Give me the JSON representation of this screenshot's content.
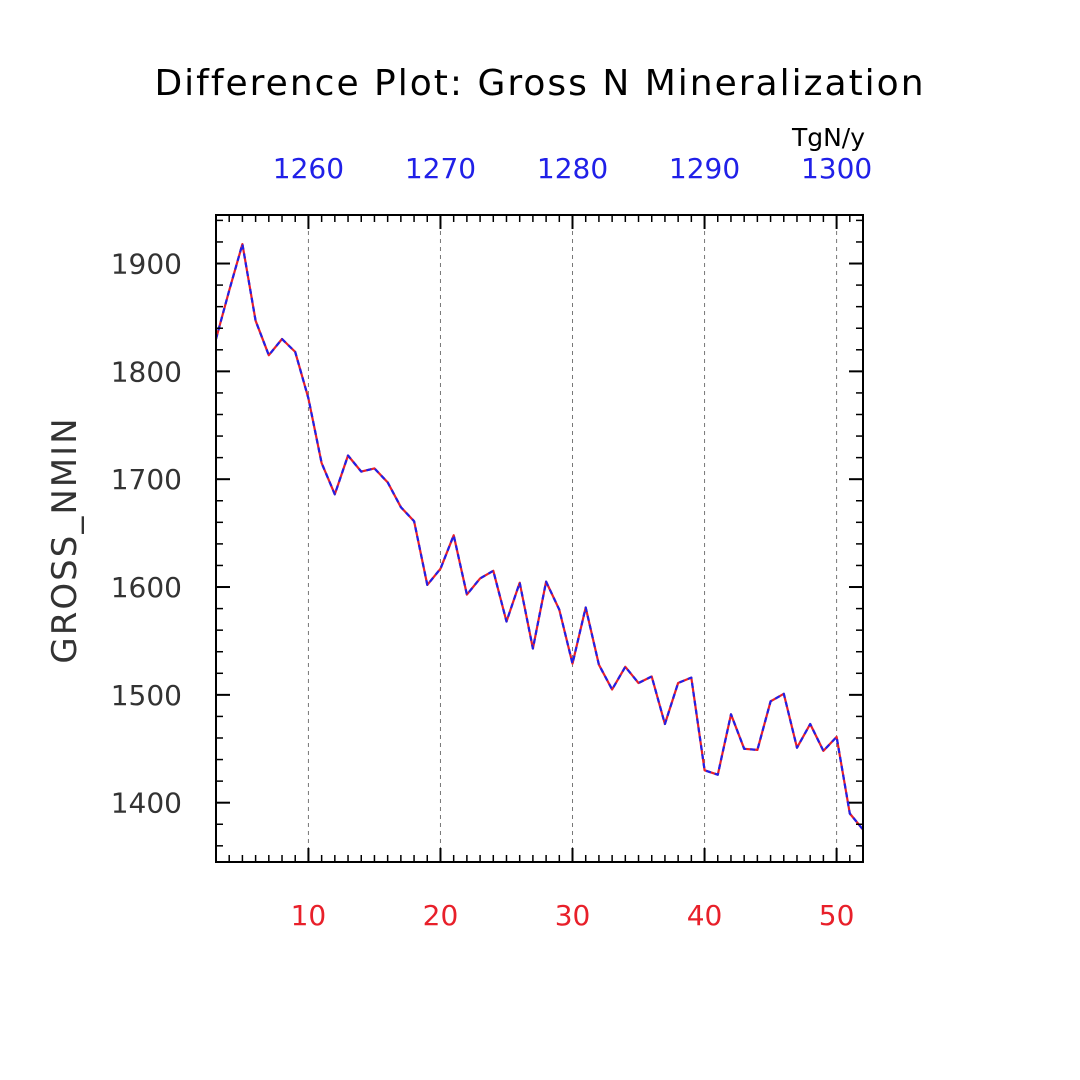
{
  "chart_data": {
    "type": "line",
    "title": "Difference Plot: Gross N Mineralization",
    "ylabel": "GROSS_NMIN",
    "units": "TgN/y",
    "xlim": [
      3,
      52
    ],
    "ylim": [
      1345,
      1945
    ],
    "x_ticks": [
      10,
      20,
      30,
      40,
      50
    ],
    "x_top_ticks": [
      1260,
      1270,
      1280,
      1290,
      1300
    ],
    "y_ticks": [
      1400,
      1500,
      1600,
      1700,
      1800,
      1900
    ],
    "grid": "x-dashed",
    "colors": {
      "bottom_axis": "#e8202a",
      "top_axis": "#2020e8",
      "series_a": "#e8202a",
      "series_b": "#2020e8",
      "text": "#000000"
    },
    "x": [
      3,
      4,
      5,
      6,
      7,
      8,
      9,
      10,
      11,
      12,
      13,
      14,
      15,
      16,
      17,
      18,
      19,
      20,
      21,
      22,
      23,
      24,
      25,
      26,
      27,
      28,
      29,
      30,
      31,
      32,
      33,
      34,
      35,
      36,
      37,
      38,
      39,
      40,
      41,
      42,
      43,
      44,
      45,
      46,
      47,
      48,
      49,
      50,
      51,
      52
    ],
    "series": [
      {
        "values": [
          1830,
          1875,
          1918,
          1847,
          1815,
          1830,
          1818,
          1775,
          1715,
          1686,
          1722,
          1707,
          1710,
          1697,
          1674,
          1661,
          1602,
          1617,
          1648,
          1593,
          1608,
          1615,
          1568,
          1604,
          1543,
          1605,
          1579,
          1529,
          1581,
          1528,
          1505,
          1526,
          1511,
          1517,
          1473,
          1511,
          1516,
          1430,
          1426,
          1482,
          1450,
          1449,
          1494,
          1501,
          1451,
          1473,
          1448,
          1461,
          1390,
          1375
        ]
      },
      {
        "values": [
          1830,
          1875,
          1918,
          1847,
          1815,
          1830,
          1818,
          1775,
          1715,
          1686,
          1722,
          1707,
          1710,
          1697,
          1674,
          1661,
          1602,
          1617,
          1648,
          1593,
          1608,
          1615,
          1568,
          1604,
          1543,
          1605,
          1579,
          1529,
          1581,
          1528,
          1505,
          1526,
          1511,
          1517,
          1473,
          1511,
          1516,
          1430,
          1426,
          1482,
          1450,
          1449,
          1494,
          1501,
          1451,
          1473,
          1448,
          1461,
          1390,
          1375
        ]
      }
    ]
  }
}
